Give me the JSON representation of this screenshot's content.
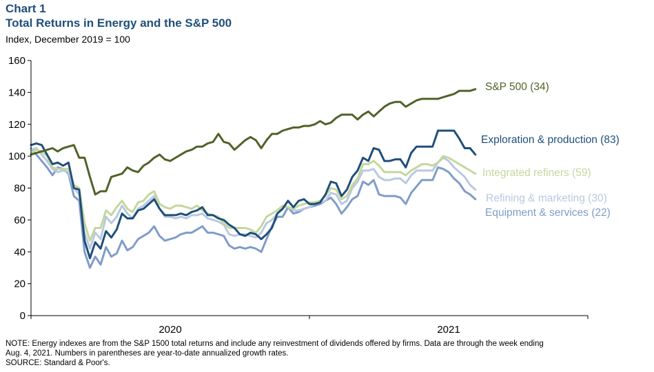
{
  "header": {
    "chart_label": "Chart 1",
    "title": "Total Returns in Energy and the S&P 500",
    "subtitle": "Index,  December 2019 = 100"
  },
  "footnotes": {
    "note_line1": "NOTE: Energy indexes are from the S&P 1500 total returns and include any reinvestment of dividends offered by firms. Data are through the week ending",
    "note_line2": "Aug. 4, 2021. Numbers in parentheses are year-to-date annualized growth rates.",
    "source": "SOURCE: Standard & Poor's."
  },
  "chart_data": {
    "type": "line",
    "title": "Total Returns in Energy and the S&P 500",
    "ylabel": "Index, December 2019 = 100",
    "xlabel": "",
    "ylim": [
      0,
      160
    ],
    "yticks": [
      0,
      20,
      40,
      60,
      80,
      100,
      120,
      140,
      160
    ],
    "ytick_labels": [
      "0",
      "20",
      "40",
      "60",
      "80",
      "100",
      "120",
      "140",
      "160"
    ],
    "xlim": [
      0,
      104
    ],
    "x_unit": "weeks since first week of Dec 2019",
    "x_major_ticks": [
      0,
      52,
      104
    ],
    "x_year_labels": [
      {
        "label": "2020",
        "x": 26
      },
      {
        "label": "2021",
        "x": 78
      }
    ],
    "grid": false,
    "series": [
      {
        "name": "S&P 500",
        "label": "S&P 500 (34)",
        "color": "#4f6228",
        "x": [
          0,
          2,
          4,
          5,
          6,
          7,
          8,
          9,
          10,
          11,
          12,
          13,
          14,
          15,
          16,
          17,
          18,
          19,
          20,
          21,
          22,
          23,
          24,
          25,
          26,
          27,
          28,
          29,
          30,
          31,
          32,
          33,
          34,
          35,
          36,
          37,
          38,
          39,
          40,
          41,
          42,
          43,
          44,
          45,
          46,
          47,
          48,
          49,
          50,
          51,
          52,
          53,
          54,
          55,
          56,
          57,
          58,
          59,
          60,
          61,
          62,
          63,
          64,
          65,
          66,
          67,
          68,
          69,
          70,
          71,
          72,
          73,
          74,
          75,
          76,
          77,
          78,
          79,
          80,
          81,
          82,
          83
        ],
        "values": [
          101,
          103,
          105,
          103,
          105,
          106,
          107,
          99,
          99,
          87,
          76,
          78,
          78,
          87,
          88,
          89,
          93,
          91,
          90,
          94,
          96,
          99,
          101,
          98,
          97,
          99,
          101,
          103,
          104,
          106,
          106,
          108,
          109,
          114,
          109,
          108,
          104,
          107,
          110,
          112,
          110,
          105,
          110,
          114,
          114,
          116,
          117,
          118,
          118,
          119,
          119,
          120,
          122,
          120,
          121,
          124,
          126,
          126,
          126,
          123,
          126,
          128,
          125,
          128,
          131,
          133,
          134,
          134,
          131,
          133,
          135,
          136,
          136,
          136,
          136,
          137,
          138,
          139,
          141,
          141,
          141,
          142
        ]
      },
      {
        "name": "Exploration & production",
        "label": "Exploration & production (83)",
        "color": "#1f4e79",
        "x": [
          0,
          1,
          2,
          3,
          4,
          5,
          6,
          7,
          8,
          9,
          10,
          11,
          12,
          13,
          14,
          15,
          16,
          17,
          18,
          19,
          20,
          21,
          22,
          23,
          24,
          25,
          26,
          27,
          28,
          29,
          30,
          31,
          32,
          33,
          34,
          35,
          36,
          37,
          38,
          39,
          40,
          41,
          42,
          43,
          44,
          45,
          46,
          47,
          48,
          49,
          50,
          51,
          52,
          53,
          54,
          55,
          56,
          57,
          58,
          59,
          60,
          61,
          62,
          63,
          64,
          65,
          66,
          67,
          68,
          69,
          70,
          71,
          72,
          73,
          74,
          75,
          76,
          77,
          78,
          79,
          80,
          81,
          82,
          83
        ],
        "values": [
          107,
          108,
          107,
          101,
          95,
          96,
          94,
          96,
          80,
          79,
          47,
          36,
          46,
          42,
          53,
          49,
          54,
          64,
          61,
          61,
          66,
          67,
          70,
          73,
          67,
          63,
          63,
          63,
          64,
          63,
          65,
          66,
          68,
          63,
          63,
          61,
          60,
          57,
          55,
          51,
          50,
          52,
          51,
          48,
          51,
          55,
          64,
          67,
          72,
          68,
          72,
          73,
          70,
          70,
          71,
          76,
          84,
          83,
          75,
          79,
          87,
          91,
          99,
          97,
          105,
          104,
          97,
          97,
          98,
          98,
          93,
          102,
          106,
          106,
          106,
          106,
          116,
          116,
          116,
          116,
          111,
          105,
          105,
          101
        ]
      },
      {
        "name": "Integrated refiners",
        "label": "Integrated  refiners (59)",
        "color": "#c4d79b",
        "x": [
          0,
          1,
          2,
          3,
          4,
          5,
          6,
          7,
          8,
          9,
          10,
          11,
          12,
          13,
          14,
          15,
          16,
          17,
          18,
          19,
          20,
          21,
          22,
          23,
          24,
          25,
          26,
          27,
          28,
          29,
          30,
          31,
          32,
          33,
          34,
          35,
          36,
          37,
          38,
          39,
          40,
          41,
          42,
          43,
          44,
          45,
          46,
          47,
          48,
          49,
          50,
          51,
          52,
          53,
          54,
          55,
          56,
          57,
          58,
          59,
          60,
          61,
          62,
          63,
          64,
          65,
          66,
          67,
          68,
          69,
          70,
          71,
          72,
          73,
          74,
          75,
          76,
          77,
          78,
          79,
          80,
          81,
          82,
          83
        ],
        "values": [
          102,
          104,
          103,
          100,
          93,
          92,
          92,
          92,
          82,
          80,
          58,
          47,
          55,
          55,
          66,
          63,
          68,
          72,
          67,
          65,
          71,
          72,
          76,
          78,
          70,
          68,
          67,
          69,
          69,
          68,
          67,
          69,
          66,
          64,
          63,
          62,
          58,
          55,
          55,
          55,
          55,
          54,
          52,
          56,
          62,
          64,
          66,
          69,
          68,
          67,
          69,
          70,
          71,
          71,
          72,
          75,
          80,
          79,
          73,
          75,
          82,
          86,
          95,
          95,
          97,
          94,
          90,
          90,
          90,
          90,
          88,
          91,
          93,
          95,
          95,
          94,
          96,
          100,
          99,
          97,
          95,
          93,
          91,
          89
        ]
      },
      {
        "name": "Refining & marketing",
        "label": "Refining & marketing (30)",
        "color": "#b8c9e1",
        "x": [
          0,
          1,
          2,
          3,
          4,
          5,
          6,
          7,
          8,
          9,
          10,
          11,
          12,
          13,
          14,
          15,
          16,
          17,
          18,
          19,
          20,
          21,
          22,
          23,
          24,
          25,
          26,
          27,
          28,
          29,
          30,
          31,
          32,
          33,
          34,
          35,
          36,
          37,
          38,
          39,
          40,
          41,
          42,
          43,
          44,
          45,
          46,
          47,
          48,
          49,
          50,
          51,
          52,
          53,
          54,
          55,
          56,
          57,
          58,
          59,
          60,
          61,
          62,
          63,
          64,
          65,
          66,
          67,
          68,
          69,
          70,
          71,
          72,
          73,
          74,
          75,
          76,
          77,
          78,
          79,
          80,
          81,
          82,
          83
        ],
        "values": [
          104,
          105,
          101,
          97,
          92,
          90,
          91,
          90,
          80,
          76,
          52,
          42,
          52,
          48,
          62,
          58,
          62,
          69,
          64,
          61,
          67,
          69,
          72,
          75,
          67,
          62,
          62,
          61,
          62,
          61,
          63,
          63,
          64,
          61,
          60,
          59,
          57,
          51,
          50,
          51,
          51,
          50,
          49,
          52,
          58,
          60,
          64,
          68,
          68,
          66,
          66,
          67,
          68,
          70,
          71,
          72,
          77,
          76,
          70,
          72,
          80,
          84,
          91,
          91,
          92,
          87,
          85,
          85,
          86,
          86,
          83,
          88,
          91,
          91,
          91,
          91,
          96,
          99,
          97,
          93,
          90,
          87,
          82,
          79
        ]
      },
      {
        "name": "Equipment & services",
        "label": "Equipment & services (22)",
        "color": "#7f9cc9",
        "x": [
          0,
          1,
          2,
          3,
          4,
          5,
          6,
          7,
          8,
          9,
          10,
          11,
          12,
          13,
          14,
          15,
          16,
          17,
          18,
          19,
          20,
          21,
          22,
          23,
          24,
          25,
          26,
          27,
          28,
          29,
          30,
          31,
          32,
          33,
          34,
          35,
          36,
          37,
          38,
          39,
          40,
          41,
          42,
          43,
          44,
          45,
          46,
          47,
          48,
          49,
          50,
          51,
          52,
          53,
          54,
          55,
          56,
          57,
          58,
          59,
          60,
          61,
          62,
          63,
          64,
          65,
          66,
          67,
          68,
          69,
          70,
          71,
          72,
          73,
          74,
          75,
          76,
          77,
          78,
          79,
          80,
          81,
          82,
          83
        ],
        "values": [
          105,
          101,
          97,
          93,
          88,
          93,
          92,
          89,
          75,
          72,
          40,
          30,
          37,
          32,
          43,
          37,
          39,
          47,
          41,
          43,
          48,
          50,
          52,
          56,
          50,
          47,
          48,
          49,
          51,
          52,
          52,
          54,
          56,
          52,
          52,
          51,
          50,
          44,
          42,
          43,
          42,
          43,
          42,
          40,
          48,
          56,
          62,
          62,
          68,
          64,
          65,
          67,
          68,
          69,
          70,
          72,
          74,
          70,
          64,
          68,
          73,
          75,
          84,
          82,
          85,
          76,
          75,
          75,
          75,
          74,
          70,
          77,
          81,
          85,
          85,
          85,
          93,
          92,
          90,
          86,
          83,
          78,
          76,
          73
        ]
      }
    ]
  }
}
